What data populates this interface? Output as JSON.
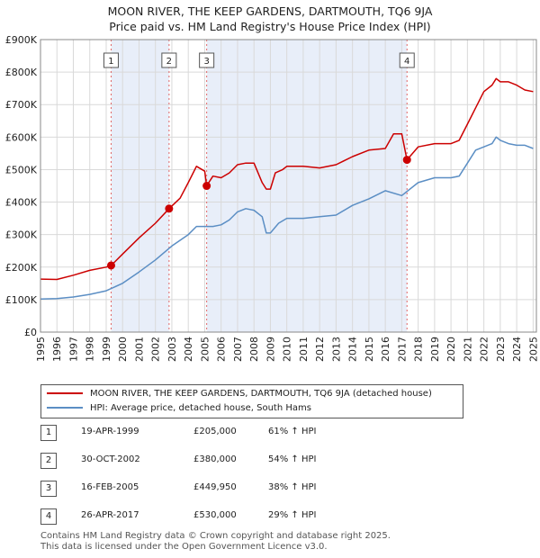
{
  "title_line1": "MOON RIVER, THE KEEP GARDENS, DARTMOUTH, TQ6 9JA",
  "title_line2": "Price paid vs. HM Land Registry's House Price Index (HPI)",
  "chart_data": {
    "type": "line",
    "title": "MOON RIVER, THE KEEP GARDENS, DARTMOUTH, TQ6 9JA — Price paid vs. HM Land Registry's House Price Index (HPI)",
    "xlim": [
      1995,
      2025.2
    ],
    "ylim": [
      0,
      900000
    ],
    "y_ticks": [
      {
        "value": 0,
        "label": "£0"
      },
      {
        "value": 100000,
        "label": "£100K"
      },
      {
        "value": 200000,
        "label": "£200K"
      },
      {
        "value": 300000,
        "label": "£300K"
      },
      {
        "value": 400000,
        "label": "£400K"
      },
      {
        "value": 500000,
        "label": "£500K"
      },
      {
        "value": 600000,
        "label": "£600K"
      },
      {
        "value": 700000,
        "label": "£700K"
      },
      {
        "value": 800000,
        "label": "£800K"
      },
      {
        "value": 900000,
        "label": "£900K"
      }
    ],
    "x_ticks": [
      "1995",
      "1996",
      "1997",
      "1998",
      "1999",
      "2000",
      "2001",
      "2002",
      "2003",
      "2004",
      "2005",
      "2006",
      "2007",
      "2008",
      "2009",
      "2010",
      "2011",
      "2012",
      "2013",
      "2014",
      "2015",
      "2016",
      "2017",
      "2018",
      "2019",
      "2020",
      "2021",
      "2022",
      "2023",
      "2024",
      "2025"
    ],
    "grid": true,
    "shaded_ranges": [
      [
        1999.3,
        2002.83
      ],
      [
        2005.12,
        2017.32
      ]
    ],
    "series": [
      {
        "name": "MOON RIVER, THE KEEP GARDENS, DARTMOUTH, TQ6 9JA (detached house)",
        "color": "#cc0000",
        "x": [
          1995.0,
          1996.0,
          1997.0,
          1998.0,
          1999.0,
          1999.3,
          2000.0,
          2001.0,
          2002.0,
          2002.83,
          2003.5,
          2004.0,
          2004.5,
          2005.0,
          2005.12,
          2005.5,
          2006.0,
          2006.5,
          2007.0,
          2007.5,
          2008.0,
          2008.5,
          2008.75,
          2009.0,
          2009.3,
          2009.75,
          2010.0,
          2011.0,
          2012.0,
          2013.0,
          2014.0,
          2015.0,
          2016.0,
          2016.5,
          2017.0,
          2017.32,
          2018.0,
          2019.0,
          2020.0,
          2020.5,
          2021.0,
          2021.5,
          2022.0,
          2022.5,
          2022.75,
          2023.0,
          2023.5,
          2024.0,
          2024.5,
          2025.0
        ],
        "y": [
          163000,
          162000,
          175000,
          190000,
          200000,
          205000,
          240000,
          290000,
          335000,
          380000,
          412000,
          460000,
          510000,
          495000,
          449950,
          480000,
          475000,
          490000,
          515000,
          520000,
          520000,
          460000,
          440000,
          440000,
          490000,
          500000,
          510000,
          510000,
          505000,
          515000,
          540000,
          560000,
          565000,
          610000,
          610000,
          530000,
          570000,
          580000,
          580000,
          590000,
          640000,
          690000,
          740000,
          760000,
          780000,
          770000,
          770000,
          760000,
          745000,
          740000
        ]
      },
      {
        "name": "HPI: Average price, detached house, South Hams",
        "color": "#5b8ec4",
        "x": [
          1995.0,
          1996.0,
          1997.0,
          1998.0,
          1999.0,
          2000.0,
          2001.0,
          2002.0,
          2003.0,
          2004.0,
          2004.5,
          2005.0,
          2005.5,
          2006.0,
          2006.5,
          2007.0,
          2007.5,
          2008.0,
          2008.5,
          2008.75,
          2009.0,
          2009.5,
          2010.0,
          2011.0,
          2012.0,
          2013.0,
          2014.0,
          2015.0,
          2016.0,
          2017.0,
          2018.0,
          2019.0,
          2020.0,
          2020.5,
          2021.0,
          2021.5,
          2022.0,
          2022.5,
          2022.75,
          2023.0,
          2023.5,
          2024.0,
          2024.5,
          2025.0
        ],
        "y": [
          102000,
          103000,
          108000,
          116000,
          127000,
          150000,
          185000,
          222000,
          265000,
          300000,
          325000,
          325000,
          325000,
          330000,
          345000,
          370000,
          380000,
          375000,
          355000,
          305000,
          305000,
          335000,
          350000,
          350000,
          355000,
          360000,
          390000,
          410000,
          435000,
          420000,
          460000,
          475000,
          475000,
          480000,
          520000,
          560000,
          570000,
          580000,
          600000,
          590000,
          580000,
          575000,
          575000,
          565000
        ]
      }
    ],
    "sales": [
      {
        "num": "1",
        "x": 1999.3,
        "value": 205000
      },
      {
        "num": "2",
        "x": 2002.83,
        "value": 380000
      },
      {
        "num": "3",
        "x": 2005.12,
        "value": 449950
      },
      {
        "num": "4",
        "x": 2017.32,
        "value": 530000
      }
    ]
  },
  "legend": {
    "property_label": "MOON RIVER, THE KEEP GARDENS, DARTMOUTH, TQ6 9JA (detached house)",
    "hpi_label": "HPI: Average price, detached house, South Hams"
  },
  "sales_table": [
    {
      "num": "1",
      "date": "19-APR-1999",
      "price": "£205,000",
      "hpi": "61% ↑ HPI"
    },
    {
      "num": "2",
      "date": "30-OCT-2002",
      "price": "£380,000",
      "hpi": "54% ↑ HPI"
    },
    {
      "num": "3",
      "date": "16-FEB-2005",
      "price": "£449,950",
      "hpi": "38% ↑ HPI"
    },
    {
      "num": "4",
      "date": "26-APR-2017",
      "price": "£530,000",
      "hpi": "29% ↑ HPI"
    }
  ],
  "footer_line1": "Contains HM Land Registry data © Crown copyright and database right 2025.",
  "footer_line2": "This data is licensed under the Open Government Licence v3.0."
}
